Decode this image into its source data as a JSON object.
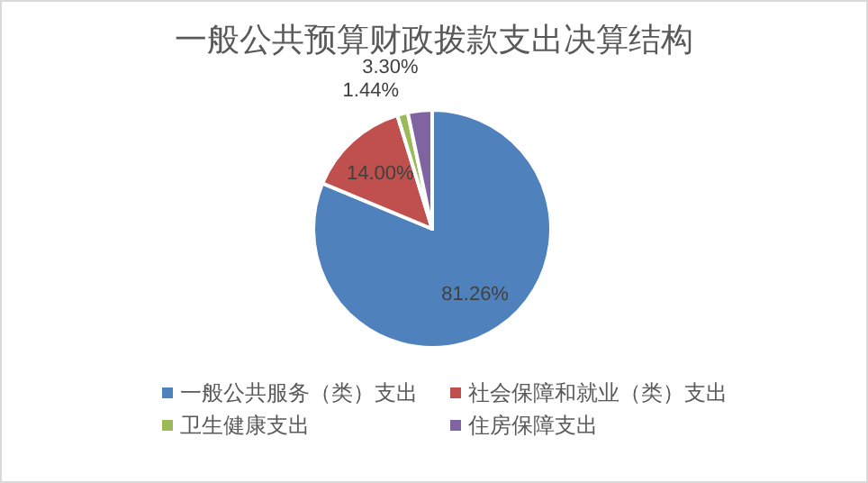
{
  "chart_data": {
    "type": "pie",
    "title": "一般公共预算财政拨款支出决算结构",
    "categories": [
      "一般公共服务（类）支出",
      "社会保障和就业（类）支出",
      "卫生健康支出",
      "住房保障支出"
    ],
    "values": [
      81.26,
      14.0,
      1.44,
      3.3
    ],
    "colors": [
      "#4f81bd",
      "#c0504d",
      "#9bbb59",
      "#8064a2"
    ],
    "value_labels": [
      "81.26%",
      "14.00%",
      "1.44%",
      "3.30%"
    ],
    "legend": "bottom"
  }
}
